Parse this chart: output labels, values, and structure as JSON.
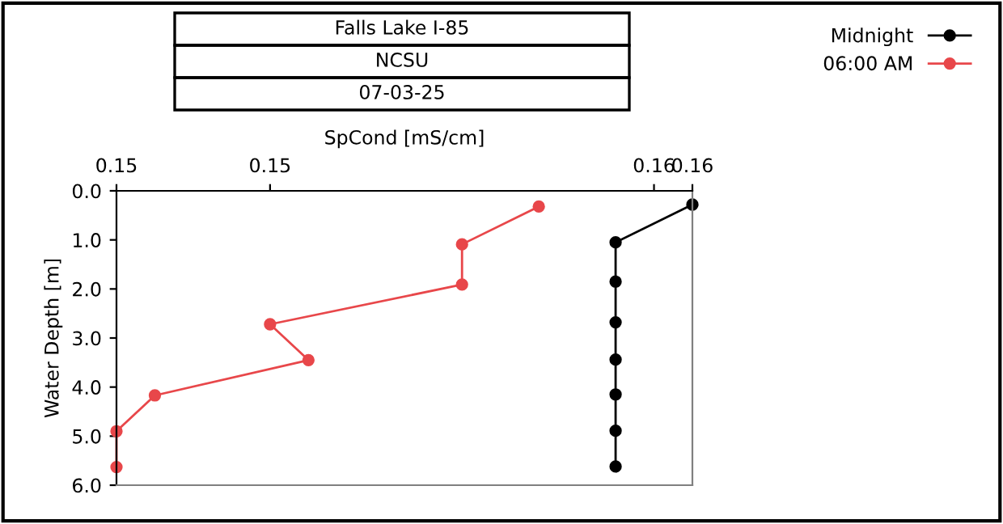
{
  "chart_data": {
    "type": "line",
    "title": "Falls Lake I-85",
    "subtitle": "NCSU",
    "annotations": [
      "07-03-25"
    ],
    "xlabel": "SpCond [mS/cm]",
    "ylabel": "Water Depth [m]",
    "xlim": [
      0.148,
      0.1555
    ],
    "xticks": [
      {
        "value": 0.148,
        "label": "0.15"
      },
      {
        "value": 0.15,
        "label": "0.15"
      },
      {
        "value": 0.155,
        "label": "0.16"
      },
      {
        "value": 0.1555,
        "label": "0.16"
      }
    ],
    "ylim": [
      6.0,
      0.0
    ],
    "yticks": [
      {
        "value": 0,
        "label": "0.0"
      },
      {
        "value": 1,
        "label": "1.0"
      },
      {
        "value": 2,
        "label": "2.0"
      },
      {
        "value": 3,
        "label": "3.0"
      },
      {
        "value": 4,
        "label": "4.0"
      },
      {
        "value": 5,
        "label": "5.0"
      },
      {
        "value": 6,
        "label": "6.0"
      }
    ],
    "series": [
      {
        "name": "Midnight",
        "color": "#000000",
        "x": [
          0.1555,
          0.1545,
          0.1545,
          0.1545,
          0.1545,
          0.1545,
          0.1545,
          0.1545
        ],
        "values": [
          0.28,
          1.05,
          1.85,
          2.68,
          3.44,
          4.15,
          4.89,
          5.62
        ]
      },
      {
        "name": "06:00 AM",
        "color": "#e8474a",
        "x": [
          0.1535,
          0.1525,
          0.1525,
          0.15,
          0.1505,
          0.1485,
          0.148,
          0.148
        ],
        "values": [
          0.32,
          1.09,
          1.91,
          2.72,
          3.45,
          4.17,
          4.9,
          5.63
        ]
      }
    ],
    "marker": "circle",
    "line_style": "solid",
    "grid": false,
    "legend": "top right"
  }
}
